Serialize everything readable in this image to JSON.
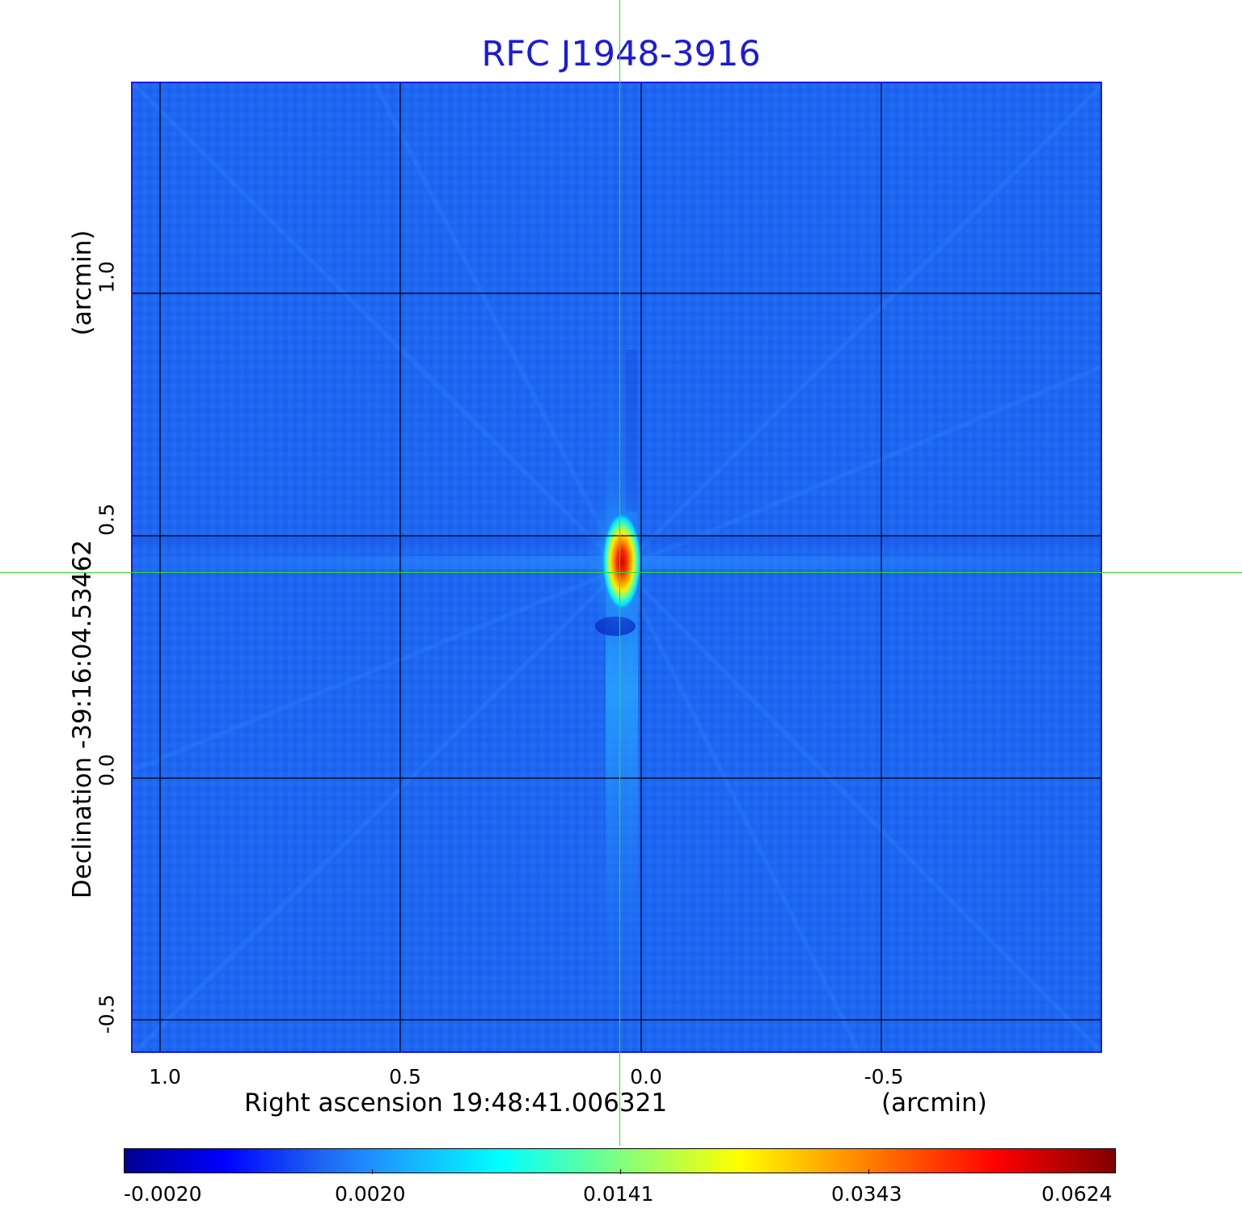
{
  "title": "RFC J1948-3916",
  "x_axis": {
    "label": "Right ascension  19:48:41.006321",
    "unit": "(arcmin)",
    "ticks": [
      "1.0",
      "0.5",
      "0.0",
      "-0.5"
    ]
  },
  "y_axis": {
    "label": "Declination  -39:16:04.53462",
    "unit": "(arcmin)",
    "ticks": [
      "1.0",
      "0.5",
      "0.0",
      "-0.5"
    ]
  },
  "colorbar": {
    "ticks": [
      "-0.0020",
      "0.0020",
      "0.0141",
      "0.0343",
      "0.0624"
    ],
    "colormap": "jet"
  },
  "colors": {
    "title": "#1a1adf",
    "frame": "#1a1adf",
    "background_field": "#1e66f2",
    "crosshair": "#33dd33"
  }
}
